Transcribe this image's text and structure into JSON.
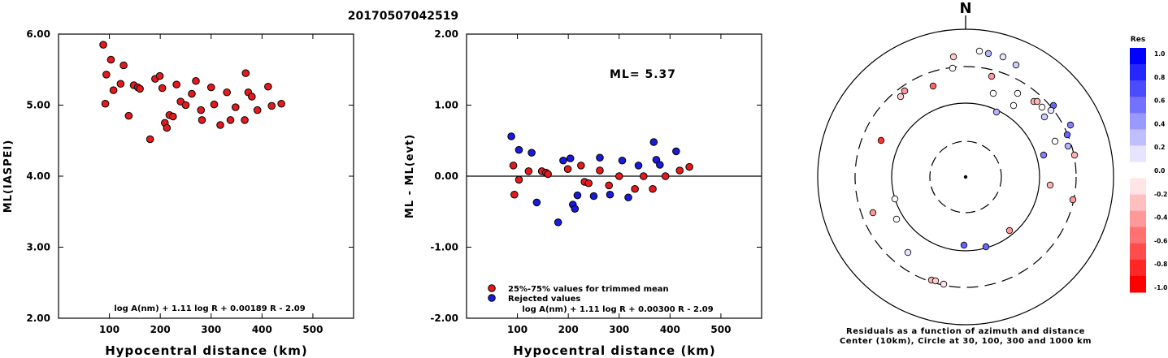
{
  "title": "20170507042519",
  "chart_data": [
    {
      "type": "scatter",
      "ylabel": "ML(IASPEI)",
      "xlabel": "Hypocentral distance (km)",
      "xlim": [
        0,
        580
      ],
      "ylim": [
        2.0,
        6.0
      ],
      "xticks": [
        "100",
        "200",
        "300",
        "400",
        "500"
      ],
      "yticks": [
        "2.00",
        "3.00",
        "4.00",
        "5.00",
        "6.00"
      ],
      "formula": "log A(nm) + 1.11 log R + 0.00189 R - 2.09",
      "color": "#e41a1c",
      "x": [
        88,
        92,
        94,
        103,
        108,
        122,
        128,
        138,
        148,
        156,
        160,
        180,
        190,
        199,
        204,
        209,
        213,
        218,
        225,
        232,
        240,
        250,
        262,
        270,
        280,
        282,
        300,
        306,
        318,
        331,
        338,
        348,
        366,
        368,
        373,
        380,
        391,
        412,
        419,
        438
      ],
      "y": [
        5.85,
        5.02,
        5.43,
        5.64,
        5.21,
        5.3,
        5.56,
        4.85,
        5.28,
        5.25,
        5.23,
        4.52,
        5.37,
        5.41,
        5.24,
        4.75,
        4.68,
        4.86,
        4.84,
        5.29,
        5.05,
        5.0,
        5.16,
        5.34,
        4.93,
        4.79,
        5.25,
        5.01,
        4.72,
        5.18,
        4.79,
        4.97,
        4.79,
        5.45,
        5.18,
        5.12,
        4.93,
        5.26,
        4.99,
        5.02
      ]
    },
    {
      "type": "scatter",
      "ylabel": "ML - ML(evt)",
      "xlabel": "Hypocentral distance (km)",
      "xlim": [
        0,
        580
      ],
      "ylim": [
        -2.0,
        2.0
      ],
      "xticks": [
        "100",
        "200",
        "300",
        "400",
        "500"
      ],
      "yticks": [
        "-2.00",
        "-1.00",
        "0.00",
        "1.00",
        "2.00"
      ],
      "annotation": "ML= 5.37",
      "formula": "log A(nm) + 1.11 log R + 0.00300 R - 2.09",
      "legend": [
        "25%-75% values for trimmed mean",
        "Rejected values"
      ],
      "series": [
        {
          "name": "25%-75% values for trimmed mean",
          "color": "#e41a1c",
          "x": [
            94,
            92,
            103,
            122,
            148,
            156,
            160,
            199,
            225,
            232,
            240,
            262,
            280,
            300,
            331,
            348,
            366,
            391,
            419,
            438
          ],
          "y": [
            -0.26,
            0.15,
            -0.05,
            0.07,
            0.07,
            0.05,
            0.03,
            0.1,
            0.15,
            -0.08,
            -0.1,
            0.08,
            -0.13,
            0.0,
            -0.18,
            0.0,
            -0.18,
            0.0,
            0.08,
            0.13
          ]
        },
        {
          "name": "Rejected values",
          "color": "#1a1adc",
          "x": [
            88,
            103,
            128,
            138,
            180,
            190,
            204,
            209,
            213,
            218,
            250,
            262,
            282,
            306,
            318,
            338,
            368,
            373,
            380,
            412
          ],
          "y": [
            0.56,
            0.37,
            0.33,
            -0.37,
            -0.65,
            0.22,
            0.25,
            -0.4,
            -0.46,
            -0.27,
            -0.28,
            0.26,
            -0.26,
            0.22,
            -0.3,
            0.15,
            0.48,
            0.23,
            0.16,
            0.35
          ]
        }
      ]
    },
    {
      "type": "scatter",
      "subtype": "polar",
      "north_label": "N",
      "caption": [
        "Residuals as a function of azimuth and distance",
        "Center (10km), Circle at 30, 100, 300 and 1000 km"
      ],
      "colorbar": {
        "title": "Res",
        "labels": [
          "1.0",
          "0.8",
          "0.6",
          "0.4",
          "0.2",
          "0.0",
          "-0.2",
          "-0.4",
          "-0.6",
          "-0.8",
          "-1.0"
        ],
        "colors": [
          "#0000ff",
          "#2626ff",
          "#4c4cff",
          "#7272ff",
          "#9999ff",
          "#bfbfff",
          "#e5e5ff",
          "#ffffff",
          "#ffe5e5",
          "#ffbfbf",
          "#ff9999",
          "#ff7272",
          "#ff4c4c",
          "#ff2626",
          "#ff0000"
        ]
      },
      "points_dx_dy_residual": [
        [
          -15,
          -148,
          -0.2
        ],
        [
          17,
          -155,
          -0.05
        ],
        [
          28,
          -152,
          0.3
        ],
        [
          46,
          -148,
          0.1
        ],
        [
          62,
          -138,
          0.2
        ],
        [
          32,
          -124,
          -0.4
        ],
        [
          -16,
          -134,
          -0.05
        ],
        [
          -40,
          -112,
          -0.6
        ],
        [
          -75,
          -106,
          -0.4
        ],
        [
          -80,
          -99,
          -0.2
        ],
        [
          34,
          -103,
          0.0
        ],
        [
          64,
          -103,
          0.0
        ],
        [
          84,
          -93,
          -0.3
        ],
        [
          88,
          -93,
          -0.3
        ],
        [
          94,
          -86,
          -0.05
        ],
        [
          59,
          -88,
          0.0
        ],
        [
          38,
          -80,
          0.3
        ],
        [
          108,
          -88,
          0.6
        ],
        [
          105,
          -82,
          0.1
        ],
        [
          97,
          -74,
          0.2
        ],
        [
          -104,
          -45,
          -0.8
        ],
        [
          129,
          -64,
          0.5
        ],
        [
          125,
          -52,
          0.6
        ],
        [
          126,
          -38,
          0.3
        ],
        [
          110,
          -44,
          0.0
        ],
        [
          96,
          -27,
          0.5
        ],
        [
          134,
          -27,
          -0.3
        ],
        [
          132,
          28,
          -0.4
        ],
        [
          104,
          10,
          -0.3
        ],
        [
          -87,
          27,
          -0.05
        ],
        [
          -114,
          44,
          -0.4
        ],
        [
          -85,
          52,
          -0.05
        ],
        [
          -2,
          84,
          0.6
        ],
        [
          25,
          86,
          0.6
        ],
        [
          -71,
          93,
          0.1
        ],
        [
          54,
          66,
          -0.4
        ],
        [
          -42,
          127,
          -0.3
        ],
        [
          -37,
          128,
          -0.2
        ],
        [
          -27,
          132,
          -0.1
        ]
      ]
    }
  ]
}
